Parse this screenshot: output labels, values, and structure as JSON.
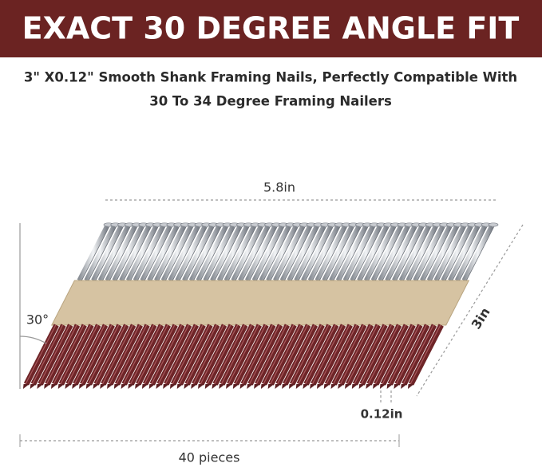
{
  "header": {
    "title": "EXACT 30 DEGREE ANGLE FIT"
  },
  "subtitle": {
    "lines": [
      "3\" X0.12\" Smooth Shank Framing Nails, Perfectly Compatible With",
      "30 To 34 Degree Framing Nailers"
    ]
  },
  "dimensions": {
    "length": "5.8in",
    "height": "3in",
    "diameter": "0.12in",
    "angle": "30°",
    "count": "40 pieces"
  }
}
